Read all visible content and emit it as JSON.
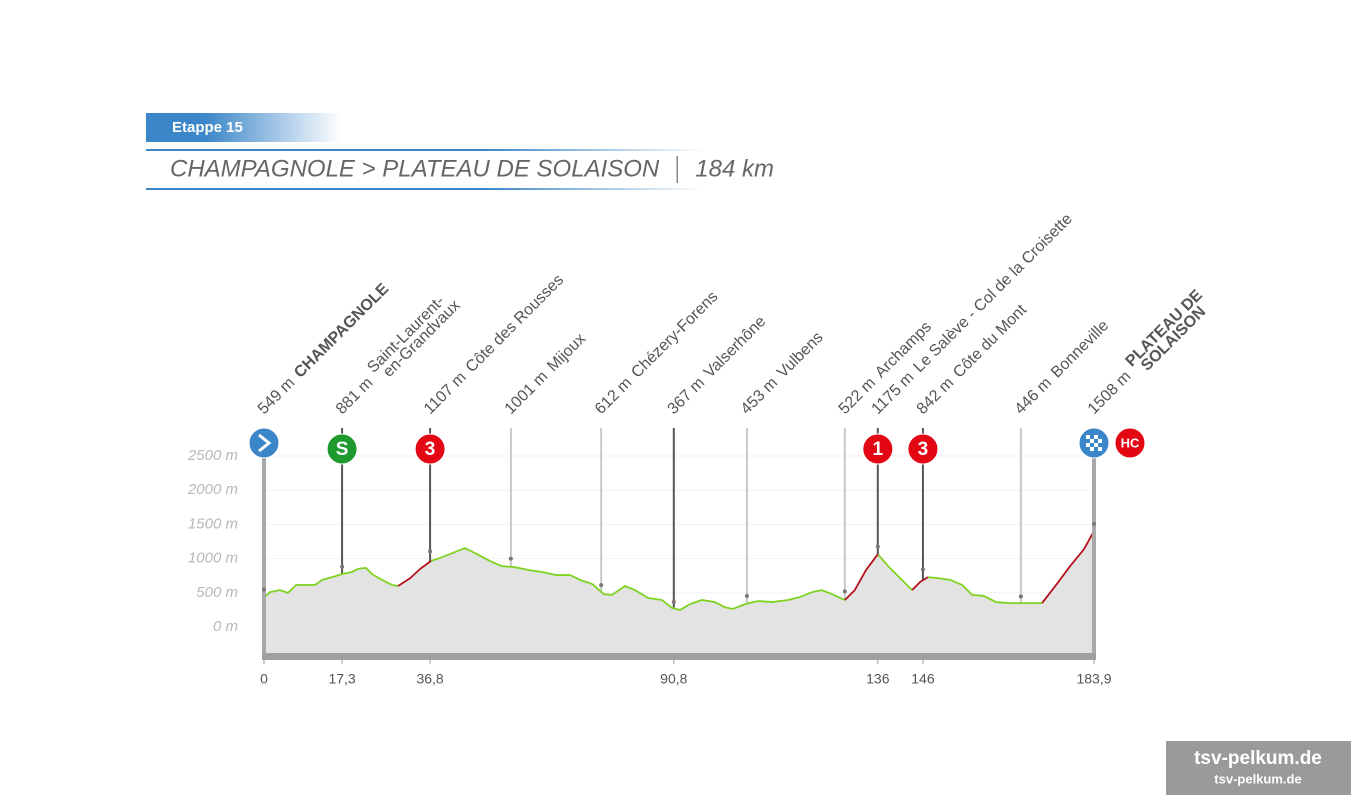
{
  "chart_data": {
    "type": "area",
    "title": "Etappe 15",
    "subtitle": "CHAMPAGNOLE > PLATEAU DE SOLAISON",
    "distance": "184 km",
    "xlim": [
      0,
      183.9
    ],
    "ylim": [
      -400,
      2600
    ],
    "grid": true,
    "fill_color": "#e3e3e3",
    "yticks": [
      {
        "value": 0,
        "label": "0 m"
      },
      {
        "value": 500,
        "label": "500 m"
      },
      {
        "value": 1000,
        "label": "1000 m"
      },
      {
        "value": 1500,
        "label": "1500 m"
      },
      {
        "value": 2000,
        "label": "2000 m"
      },
      {
        "value": 2500,
        "label": "2500 m"
      }
    ],
    "xticks": [
      0,
      {
        "value": 17.3,
        "label": "17,3"
      },
      {
        "value": 36.8,
        "label": "36,8"
      },
      {
        "value": 90.8,
        "label": "90,8"
      },
      136,
      146,
      {
        "value": 183.9,
        "label": "183,9"
      }
    ],
    "x": [
      0,
      1.3,
      3.5,
      5.3,
      7.1,
      9.1,
      11.3,
      12.9,
      15.1,
      17.3,
      19.5,
      20.8,
      22.6,
      23.9,
      26.1,
      28.4,
      29.7,
      32.4,
      34.6,
      37,
      39,
      41.7,
      44.5,
      46.8,
      50.1,
      52.7,
      55.6,
      58.5,
      61.6,
      64.7,
      67.8,
      70,
      72.7,
      75.3,
      77.1,
      80,
      82.2,
      85.1,
      88.2,
      90.4,
      92.2,
      94.4,
      97,
      99.9,
      102.1,
      103.9,
      106.6,
      109.5,
      112.6,
      116.1,
      118.8,
      121.4,
      123.6,
      125.9,
      128.7,
      130.9,
      133.4,
      136,
      138.3,
      140.5,
      143.6,
      145.4,
      147.1,
      149.3,
      152,
      154.7,
      156.9,
      159.5,
      162.2,
      165.3,
      168.6,
      172.4,
      175.5,
      178.6,
      181.7,
      183.9
    ],
    "series": [
      {
        "color": "#7ed321",
        "values": [
          425,
          510,
          540,
          500,
          615,
          615,
          615,
          690,
          730,
          775,
          805,
          850,
          865,
          775,
          690,
          615,
          600,
          null,
          null,
          965,
          1010,
          1080,
          1155,
          1080,
          965,
          890,
          875,
          835,
          805,
          760,
          760,
          690,
          630,
          480,
          470,
          600,
          540,
          425,
          395,
          280,
          250,
          335,
          395,
          365,
          290,
          265,
          335,
          380,
          365,
          395,
          440,
          510,
          540,
          480,
          395,
          null,
          null,
          1065,
          890,
          745,
          540,
          null,
          730,
          715,
          690,
          615,
          470,
          455,
          365,
          350,
          350,
          350,
          null,
          null,
          null,
          null
        ]
      },
      {
        "color": "#b5121b",
        "values": [
          null,
          null,
          null,
          null,
          null,
          null,
          null,
          null,
          null,
          null,
          null,
          null,
          null,
          null,
          null,
          null,
          600,
          715,
          850,
          965,
          null,
          null,
          null,
          null,
          null,
          null,
          null,
          null,
          null,
          null,
          null,
          null,
          null,
          null,
          null,
          null,
          null,
          null,
          null,
          null,
          null,
          null,
          null,
          null,
          null,
          null,
          null,
          null,
          null,
          null,
          null,
          null,
          null,
          null,
          395,
          540,
          835,
          1065,
          null,
          null,
          540,
          660,
          730,
          null,
          null,
          null,
          null,
          null,
          null,
          null,
          null,
          350,
          615,
          890,
          1140,
          1405
        ]
      }
    ],
    "waypoints": [
      {
        "km": 0,
        "elevation": 549,
        "elevation_label": "549 m",
        "name": "CHAMPAGNOLE",
        "icon": "start",
        "marker_color": "#3b86c8"
      },
      {
        "km": 17.3,
        "elevation": 881,
        "elevation_label": "881 m",
        "name": [
          "Saint-Laurent-",
          "en-Grandvaux"
        ],
        "category": "S",
        "marker_color": "#1e9a2e"
      },
      {
        "km": 36.8,
        "elevation": 1107,
        "elevation_label": "1107 m",
        "name": "Côte des Rousses",
        "category": "3",
        "marker_color": "#e30613"
      },
      {
        "km": 54.7,
        "elevation": 1001,
        "elevation_label": "1001 m",
        "name": "Mijoux"
      },
      {
        "km": 74.7,
        "elevation": 612,
        "elevation_label": "612 m",
        "name": "Chézery-Forens"
      },
      {
        "km": 90.8,
        "elevation": 367,
        "elevation_label": "367 m",
        "name": "Valserhône"
      },
      {
        "km": 107,
        "elevation": 453,
        "elevation_label": "453 m",
        "name": "Vulbens"
      },
      {
        "km": 128.7,
        "elevation": 522,
        "elevation_label": "522 m",
        "name": "Archamps"
      },
      {
        "km": 136,
        "elevation": 1175,
        "elevation_label": "1175 m",
        "name": "Le Salève - Col de la Croisette",
        "category": "1",
        "marker_color": "#e30613"
      },
      {
        "km": 146,
        "elevation": 842,
        "elevation_label": "842 m",
        "name": "Côte du Mont",
        "category": "3",
        "marker_color": "#e30613"
      },
      {
        "km": 167.7,
        "elevation": 446,
        "elevation_label": "446 m",
        "name": "Bonneville"
      },
      {
        "km": 183.9,
        "elevation": 1508,
        "elevation_label": "1508 m",
        "name": [
          "PLATEAU DE",
          "SOLAISON"
        ],
        "icon": "finish",
        "category": "HC",
        "marker_color": "#e30613"
      }
    ]
  },
  "watermark": [
    "tsv-pelkum.de",
    "tsv-pelkum.de"
  ]
}
